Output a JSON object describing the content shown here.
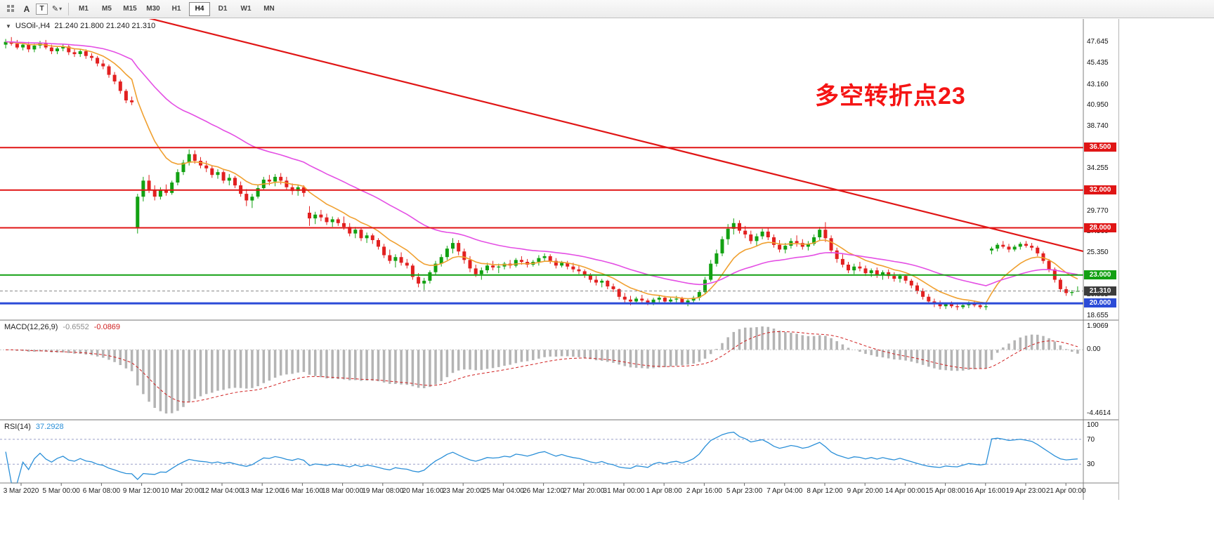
{
  "toolbar": {
    "tools": {
      "cursor_label": "A",
      "text_label": "T"
    },
    "timeframes": [
      "M1",
      "M5",
      "M15",
      "M30",
      "H1",
      "H4",
      "D1",
      "W1",
      "MN"
    ],
    "active_timeframe": "H4"
  },
  "chart_data": {
    "type": "candlestick",
    "symbol": "USOil-",
    "timeframe": "H4",
    "symbol_label": "USOil-,H4",
    "ohlc_text": "21.240 21.800 21.240 21.310",
    "annotation": {
      "text": "多空转折点23",
      "color": "#f51414"
    },
    "colors": {
      "up": "#12a112",
      "down": "#e22020",
      "ma_fast": "#f0a030",
      "ma_slow": "#e44fe4",
      "trendline": "#e01515"
    },
    "price_axis_labels": [
      "47.645",
      "45.435",
      "43.160",
      "40.950",
      "38.740",
      "34.255",
      "29.770",
      "27.560",
      "25.350",
      "20.885",
      "18.655"
    ],
    "price_levels": [
      {
        "label": "36.500",
        "value": 36.5,
        "line_color": "#e01515",
        "line_width": 2,
        "line_style": "solid",
        "tag_color": "#e01515"
      },
      {
        "label": "32.000",
        "value": 32.0,
        "line_color": "#e01515",
        "line_width": 2,
        "line_style": "solid",
        "tag_color": "#e01515"
      },
      {
        "label": "28.000",
        "value": 28.0,
        "line_color": "#e01515",
        "line_width": 2,
        "line_style": "solid",
        "tag_color": "#e01515"
      },
      {
        "label": "23.000",
        "value": 23.0,
        "line_color": "#13a013",
        "line_width": 2,
        "line_style": "solid",
        "tag_color": "#13a013"
      },
      {
        "label": "21.310",
        "value": 21.31,
        "line_color": "#8a8a8a",
        "line_width": 1,
        "line_style": "dashed",
        "tag_color": "#3c3c3c"
      },
      {
        "label": "20.000",
        "value": 20.0,
        "line_color": "#2b4bd7",
        "line_width": 3,
        "line_style": "solid",
        "tag_color": "#2b4bd7"
      }
    ],
    "x_labels": [
      "3 Mar 2020",
      "5 Mar 00:00",
      "6 Mar 08:00",
      "9 Mar 12:00",
      "10 Mar 20:00",
      "12 Mar 04:00",
      "13 Mar 12:00",
      "16 Mar 16:00",
      "18 Mar 00:00",
      "19 Mar 08:00",
      "20 Mar 16:00",
      "23 Mar 20:00",
      "25 Mar 04:00",
      "26 Mar 12:00",
      "27 Mar 20:00",
      "31 Mar 00:00",
      "1 Apr 08:00",
      "2 Apr 16:00",
      "5 Apr 23:00",
      "7 Apr 04:00",
      "8 Apr 12:00",
      "9 Apr 20:00",
      "14 Apr 00:00",
      "15 Apr 08:00",
      "16 Apr 16:00",
      "19 Apr 23:00",
      "21 Apr 00:00"
    ],
    "candles": [
      [
        47.4,
        48,
        47,
        47.7
      ],
      [
        47.7,
        48.2,
        47.3,
        47.5
      ],
      [
        47.5,
        47.9,
        46.9,
        47.1
      ],
      [
        47.1,
        47.6,
        46.8,
        47.4
      ],
      [
        47.4,
        47.7,
        46.6,
        46.9
      ],
      [
        46.9,
        47.5,
        46.6,
        47.3
      ],
      [
        47.3,
        47.8,
        47,
        47.6
      ],
      [
        47.6,
        47.9,
        46.9,
        47.1
      ],
      [
        47.1,
        47.4,
        46.4,
        46.7
      ],
      [
        46.7,
        47.2,
        46.4,
        47
      ],
      [
        47,
        47.5,
        46.7,
        47.2
      ],
      [
        47.2,
        47.4,
        46.3,
        46.6
      ],
      [
        46.6,
        47,
        46.1,
        46.4
      ],
      [
        46.4,
        46.9,
        46.1,
        46.7
      ],
      [
        46.7,
        46.9,
        45.9,
        46.2
      ],
      [
        46.2,
        46.5,
        45.7,
        46
      ],
      [
        46,
        46.2,
        45.1,
        45.4
      ],
      [
        45.4,
        45.8,
        44.8,
        45.1
      ],
      [
        45.1,
        45.3,
        43.9,
        44.2
      ],
      [
        44.2,
        44.5,
        43.2,
        43.5
      ],
      [
        43.5,
        43.7,
        42.2,
        42.5
      ],
      [
        42.5,
        42.7,
        41.2,
        41.5
      ],
      [
        41.5,
        41.9,
        41,
        41.3
      ],
      [
        28,
        31.6,
        27.4,
        31.3
      ],
      [
        31.3,
        33.4,
        30.8,
        33
      ],
      [
        33,
        33.6,
        31.7,
        32
      ],
      [
        32,
        32.5,
        30.9,
        31.3
      ],
      [
        31.3,
        32.3,
        31,
        32
      ],
      [
        32,
        32.6,
        31.4,
        31.7
      ],
      [
        31.7,
        33,
        31.5,
        32.8
      ],
      [
        32.8,
        34.2,
        32.5,
        33.9
      ],
      [
        33.9,
        35.2,
        33.6,
        34.9
      ],
      [
        34.9,
        36.3,
        34.6,
        35.8
      ],
      [
        35.8,
        36.2,
        34.8,
        35.1
      ],
      [
        35.1,
        35.5,
        34.3,
        34.6
      ],
      [
        34.6,
        35.1,
        33.9,
        34.3
      ],
      [
        34.3,
        34.6,
        33.3,
        33.6
      ],
      [
        33.6,
        34.2,
        33.2,
        33.9
      ],
      [
        33.9,
        34.1,
        32.7,
        33
      ],
      [
        33,
        33.7,
        32.5,
        33.3
      ],
      [
        33.3,
        33.5,
        32.2,
        32.5
      ],
      [
        32.5,
        32.9,
        31.3,
        31.6
      ],
      [
        31.6,
        32.1,
        30.3,
        30.9
      ],
      [
        30.9,
        31.6,
        30.1,
        31.3
      ],
      [
        31.3,
        32.5,
        31.1,
        32.2
      ],
      [
        32.2,
        33.4,
        32,
        33.1
      ],
      [
        33.1,
        33.6,
        32.5,
        32.9
      ],
      [
        32.9,
        33.7,
        32.4,
        33.4
      ],
      [
        33.4,
        33.8,
        32.6,
        33
      ],
      [
        33,
        33.4,
        32,
        32.3
      ],
      [
        32.3,
        32.7,
        31.5,
        31.9
      ],
      [
        31.9,
        32.6,
        31.4,
        32.3
      ],
      [
        32.3,
        32.5,
        31.3,
        31.7
      ],
      [
        29.6,
        30.3,
        28.2,
        29
      ],
      [
        29,
        29.7,
        28.4,
        29.4
      ],
      [
        29.4,
        29.9,
        28.7,
        29.1
      ],
      [
        29.1,
        29.5,
        28.3,
        28.6
      ],
      [
        28.6,
        29.2,
        28.1,
        28.9
      ],
      [
        28.9,
        29.1,
        28.2,
        28.5
      ],
      [
        28.5,
        29.2,
        27.8,
        28.1
      ],
      [
        28.1,
        28.5,
        27.1,
        27.4
      ],
      [
        27.4,
        28.1,
        26.9,
        27.8
      ],
      [
        27.8,
        28,
        26.6,
        26.9
      ],
      [
        26.9,
        27.5,
        26.4,
        27.2
      ],
      [
        27.2,
        27.4,
        26.3,
        26.7
      ],
      [
        26.7,
        26.9,
        25.7,
        26
      ],
      [
        26,
        26.3,
        24.8,
        25.1
      ],
      [
        25.1,
        25.7,
        24.2,
        24.5
      ],
      [
        24.5,
        25.2,
        23.8,
        24.9
      ],
      [
        24.9,
        25.4,
        24,
        24.3
      ],
      [
        24.3,
        24.7,
        23.7,
        24
      ],
      [
        24,
        24.2,
        22.5,
        22.8
      ],
      [
        22.8,
        23.2,
        21.7,
        22.1
      ],
      [
        22.1,
        22.7,
        21.4,
        22.4
      ],
      [
        22.4,
        23.5,
        22.1,
        23.3
      ],
      [
        23.3,
        24.5,
        23,
        24.2
      ],
      [
        24.2,
        25.2,
        23.9,
        24.9
      ],
      [
        24.9,
        26.1,
        24.6,
        25.8
      ],
      [
        25.8,
        26.9,
        25.3,
        26.4
      ],
      [
        26.4,
        26.7,
        25.1,
        25.5
      ],
      [
        25.5,
        25.8,
        24.2,
        24.6
      ],
      [
        24.6,
        25,
        23.3,
        23.7
      ],
      [
        23.7,
        24.1,
        22.8,
        23.1
      ],
      [
        23.1,
        23.8,
        22.5,
        23.5
      ],
      [
        23.5,
        24.3,
        23.2,
        24
      ],
      [
        24,
        24.5,
        23.5,
        23.8
      ],
      [
        23.8,
        24.2,
        23.2,
        23.9
      ],
      [
        23.9,
        24.4,
        23.6,
        24.2
      ],
      [
        24.2,
        24.6,
        23.7,
        24
      ],
      [
        24,
        24.8,
        23.8,
        24.6
      ],
      [
        24.6,
        25,
        24.1,
        24.4
      ],
      [
        24.4,
        24.7,
        23.8,
        24.1
      ],
      [
        24.1,
        24.6,
        23.9,
        24.4
      ],
      [
        24.4,
        25.1,
        24,
        24.8
      ],
      [
        24.8,
        25.3,
        24.4,
        25
      ],
      [
        25,
        25.2,
        24.2,
        24.5
      ],
      [
        24.5,
        24.8,
        23.7,
        24
      ],
      [
        24,
        24.5,
        23.8,
        24.3
      ],
      [
        24.3,
        24.5,
        23.6,
        23.9
      ],
      [
        23.9,
        24.3,
        23.3,
        23.6
      ],
      [
        23.6,
        24,
        23.1,
        23.4
      ],
      [
        23.4,
        23.6,
        22.7,
        23
      ],
      [
        23,
        23.2,
        22.2,
        22.5
      ],
      [
        22.5,
        22.9,
        21.9,
        22.2
      ],
      [
        22.2,
        22.6,
        21.7,
        22.4
      ],
      [
        22.4,
        22.5,
        21.5,
        21.8
      ],
      [
        21.8,
        22.1,
        21.2,
        21.5
      ],
      [
        21.5,
        21.6,
        20.4,
        20.7
      ],
      [
        20.7,
        21.1,
        20.1,
        20.4
      ],
      [
        20.4,
        20.8,
        19.8,
        20.2
      ],
      [
        20.2,
        20.7,
        19.9,
        20.5
      ],
      [
        20.5,
        20.9,
        20.1,
        20.3
      ],
      [
        20.3,
        20.5,
        19.8,
        20
      ],
      [
        20,
        20.6,
        19.8,
        20.4
      ],
      [
        20.4,
        20.9,
        20.1,
        20.6
      ],
      [
        20.6,
        20.8,
        20,
        20.2
      ],
      [
        20.2,
        20.6,
        19.9,
        20.4
      ],
      [
        20.4,
        20.8,
        20.1,
        20.5
      ],
      [
        20.5,
        20.7,
        19.9,
        20.1
      ],
      [
        20.1,
        20.5,
        19.7,
        20.3
      ],
      [
        20.3,
        20.8,
        20,
        20.6
      ],
      [
        20.6,
        21.4,
        20.3,
        21.2
      ],
      [
        21.2,
        22.8,
        21,
        22.5
      ],
      [
        22.5,
        24.6,
        22.3,
        24.2
      ],
      [
        24.2,
        25.7,
        23.9,
        25.3
      ],
      [
        25.3,
        27.1,
        25,
        26.8
      ],
      [
        26.8,
        28.4,
        26.2,
        27.9
      ],
      [
        27.9,
        29,
        27.3,
        28.5
      ],
      [
        28.5,
        28.8,
        27.4,
        27.7
      ],
      [
        27.7,
        28.2,
        26.9,
        27.3
      ],
      [
        27.3,
        27.7,
        26.3,
        26.6
      ],
      [
        26.6,
        27.4,
        26.1,
        27.1
      ],
      [
        27.1,
        27.9,
        26.8,
        27.6
      ],
      [
        27.6,
        28,
        26.7,
        27
      ],
      [
        27,
        27.3,
        25.9,
        26.2
      ],
      [
        26.2,
        26.7,
        25.4,
        25.7
      ],
      [
        25.7,
        26.4,
        25.3,
        26.1
      ],
      [
        26.1,
        26.9,
        25.8,
        26.6
      ],
      [
        26.6,
        27.2,
        26,
        26.4
      ],
      [
        26.4,
        26.8,
        25.7,
        26
      ],
      [
        26,
        26.6,
        25.6,
        26.3
      ],
      [
        26.3,
        27.3,
        26.1,
        27
      ],
      [
        27,
        28.1,
        26.7,
        27.8
      ],
      [
        27.8,
        28.6,
        26.5,
        26.9
      ],
      [
        26.9,
        27.2,
        25.3,
        25.6
      ],
      [
        25.6,
        25.9,
        24.3,
        24.7
      ],
      [
        24.7,
        25.2,
        23.8,
        24.1
      ],
      [
        24.1,
        24.4,
        23.2,
        23.5
      ],
      [
        23.5,
        24.2,
        23.1,
        23.9
      ],
      [
        23.9,
        24.4,
        23.4,
        23.7
      ],
      [
        23.7,
        24,
        22.9,
        23.2
      ],
      [
        23.2,
        23.7,
        22.8,
        23.5
      ],
      [
        23.5,
        23.8,
        22.7,
        23
      ],
      [
        23,
        23.5,
        22.5,
        23.3
      ],
      [
        23.3,
        23.6,
        22.6,
        22.9
      ],
      [
        22.9,
        23.3,
        22.3,
        22.6
      ],
      [
        22.6,
        23.1,
        22.2,
        22.9
      ],
      [
        22.9,
        23,
        22.1,
        22.4
      ],
      [
        22.4,
        22.6,
        21.6,
        21.9
      ],
      [
        21.9,
        22.2,
        21,
        21.3
      ],
      [
        21.3,
        21.6,
        20.4,
        20.7
      ],
      [
        20.7,
        21,
        19.9,
        20.2
      ],
      [
        20.2,
        20.5,
        19.6,
        19.9
      ],
      [
        19.9,
        20.3,
        19.4,
        19.7
      ],
      [
        19.7,
        20.1,
        19.4,
        19.9
      ],
      [
        19.9,
        20.2,
        19.5,
        19.7
      ],
      [
        19.7,
        20.1,
        19.3,
        19.6
      ],
      [
        19.6,
        20,
        19.4,
        19.8
      ],
      [
        19.8,
        20.2,
        19.5,
        20
      ],
      [
        20,
        20.3,
        19.6,
        19.8
      ],
      [
        19.8,
        20.1,
        19.4,
        19.6
      ],
      [
        19.6,
        19.9,
        19.3,
        19.7
      ],
      [
        25.6,
        26,
        25.2,
        25.8
      ],
      [
        25.8,
        26.4,
        25.5,
        26.2
      ],
      [
        26.2,
        26.6,
        25.8,
        26
      ],
      [
        26,
        26.3,
        25.4,
        25.7
      ],
      [
        25.7,
        26.2,
        25.5,
        26
      ],
      [
        26,
        26.5,
        25.7,
        26.3
      ],
      [
        26.3,
        26.6,
        25.9,
        26.1
      ],
      [
        26.1,
        26.4,
        25.6,
        25.9
      ],
      [
        25.9,
        26.1,
        25,
        25.3
      ],
      [
        25.3,
        25.5,
        24.2,
        24.5
      ],
      [
        24.5,
        24.7,
        23.3,
        23.6
      ],
      [
        23.6,
        23.8,
        22.2,
        22.5
      ],
      [
        22.5,
        22.7,
        21.2,
        21.5
      ],
      [
        21.5,
        21.8,
        20.8,
        21.1
      ],
      [
        21.1,
        21.4,
        20.8,
        21.2
      ],
      [
        21.24,
        21.8,
        21.24,
        21.31
      ]
    ],
    "indicators": {
      "macd": {
        "name": "MACD(12,26,9)",
        "main_value": "-0.6552",
        "signal_value": "-0.0869",
        "axis_labels": [
          "1.9069",
          "0.00",
          "-4.4614"
        ],
        "histogram_color": "#b4b4b4",
        "signal_color": "#d02020"
      },
      "rsi": {
        "name": "RSI(14)",
        "value": "37.2928",
        "axis_labels": [
          "100",
          "70",
          "30"
        ],
        "levels": [
          70,
          30
        ],
        "line_color": "#2a8fd8"
      }
    }
  }
}
